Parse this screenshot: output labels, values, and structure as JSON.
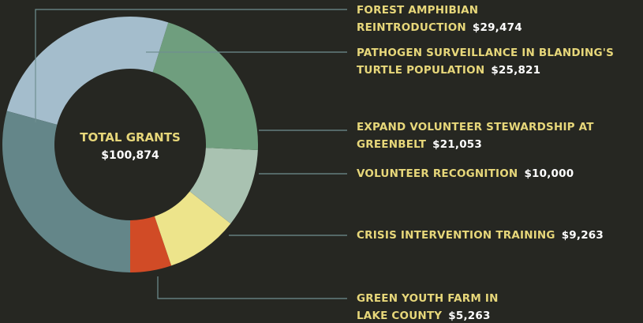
{
  "chart_data": {
    "type": "pie",
    "donut": true,
    "center_text": [
      "TOTAL GRANTS",
      "$100,874"
    ],
    "categories": [
      "FOREST AMPHIBIAN REINTRODUCTION",
      "PATHOGEN SURVEILLANCE IN BLANDING'S TURTLE POPULATION",
      "EXPAND VOLUNTEER STEWARDSHIP AT GREENBELT",
      "VOLUNTEER RECOGNITION",
      "CRISIS INTERVENTION TRAINING",
      "GREEN YOUTH FARM IN LAKE COUNTY"
    ],
    "values": [
      29474,
      25821,
      21053,
      10000,
      9263,
      5263
    ],
    "value_labels": [
      "$29,474",
      "$25,821",
      "$21,053",
      "$10,000",
      "$9,263",
      "$5,263"
    ],
    "colors": [
      "#648689",
      "#a4bdcc",
      "#6f9e7e",
      "#a9c2b1",
      "#ede48b",
      "#d14b26"
    ]
  }
}
